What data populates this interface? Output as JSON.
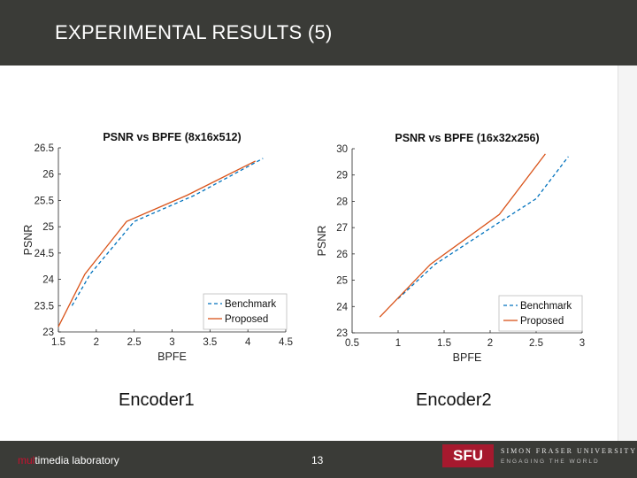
{
  "slide": {
    "title": "EXPERIMENTAL RESULTS (5)",
    "footer_lab_highlight": "mul",
    "footer_lab_rest": "timedia laboratory",
    "page_number": "13",
    "logo_text": "SFU",
    "university_name": "SIMON FRASER UNIVERSITY",
    "university_tagline": "ENGAGING THE WORLD",
    "encoder_labels": [
      "Encoder1",
      "Encoder2"
    ]
  },
  "colors": {
    "header_bg": "#3a3b37",
    "benchmark": "#0072bd",
    "proposed": "#d95319",
    "sfu_red": "#a6192e"
  },
  "chart_data": [
    {
      "type": "line",
      "title": "PSNR vs BPFE (8x16x512)",
      "xlabel": "BPFE",
      "ylabel": "PSNR",
      "xlim": [
        1.5,
        4.5
      ],
      "ylim": [
        23,
        26.5
      ],
      "xticks": [
        1.5,
        2,
        2.5,
        3,
        3.5,
        4,
        4.5
      ],
      "yticks": [
        23,
        23.5,
        24,
        24.5,
        25,
        25.5,
        26,
        26.5
      ],
      "legend_position": "bottom-right",
      "grid": false,
      "series": [
        {
          "name": "Benchmark",
          "style": "dashed",
          "x": [
            1.68,
            1.92,
            2.5,
            3.3,
            4.2
          ],
          "y": [
            23.5,
            24.1,
            25.1,
            25.6,
            26.3
          ]
        },
        {
          "name": "Proposed",
          "style": "solid",
          "x": [
            1.5,
            1.85,
            2.4,
            3.2,
            4.1
          ],
          "y": [
            23.1,
            24.1,
            25.1,
            25.6,
            26.25
          ]
        }
      ]
    },
    {
      "type": "line",
      "title": "PSNR vs BPFE (16x32x256)",
      "xlabel": "BPFE",
      "ylabel": "PSNR",
      "xlim": [
        0.5,
        3
      ],
      "ylim": [
        23,
        30
      ],
      "xticks": [
        0.5,
        1,
        1.5,
        2,
        2.5,
        3
      ],
      "yticks": [
        23,
        24,
        25,
        26,
        27,
        28,
        29,
        30
      ],
      "legend_position": "bottom-right",
      "grid": false,
      "series": [
        {
          "name": "Benchmark",
          "style": "dashed",
          "x": [
            1.0,
            1.4,
            2.1,
            2.5,
            2.85
          ],
          "y": [
            24.3,
            25.6,
            27.2,
            28.1,
            29.7
          ]
        },
        {
          "name": "Proposed",
          "style": "solid",
          "x": [
            0.8,
            1.35,
            2.1,
            2.6
          ],
          "y": [
            23.6,
            25.6,
            27.5,
            29.8
          ]
        }
      ]
    }
  ]
}
